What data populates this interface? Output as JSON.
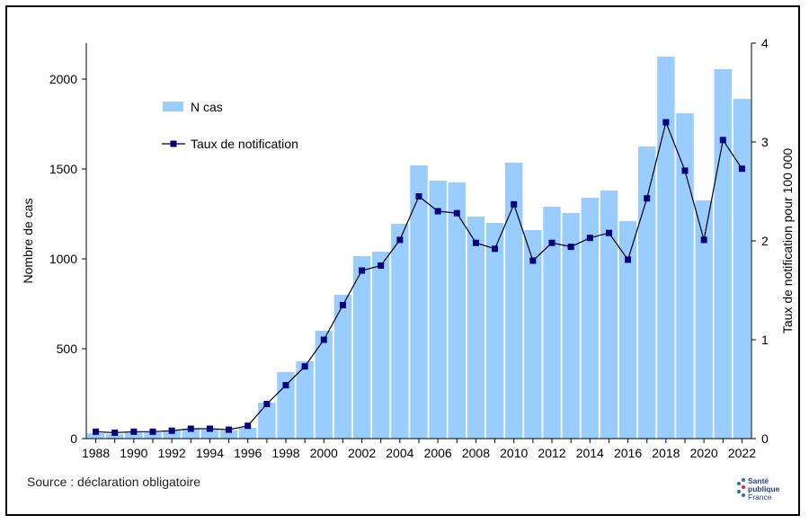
{
  "chart_data": {
    "type": "bar",
    "categories": [
      1988,
      1989,
      1990,
      1991,
      1992,
      1993,
      1994,
      1995,
      1996,
      1997,
      1998,
      1999,
      2000,
      2001,
      2002,
      2003,
      2004,
      2005,
      2006,
      2007,
      2008,
      2009,
      2010,
      2011,
      2012,
      2013,
      2014,
      2015,
      2016,
      2017,
      2018,
      2019,
      2020,
      2021,
      2022
    ],
    "x_tick_labels": [
      "1988",
      "1990",
      "1992",
      "1994",
      "1996",
      "1998",
      "2000",
      "2002",
      "2004",
      "2006",
      "2008",
      "2010",
      "2012",
      "2014",
      "2016",
      "2018",
      "2020",
      "2022"
    ],
    "series": [
      {
        "name": "N cas",
        "type": "bar",
        "axis": "left",
        "color": "#99ccff",
        "values": [
          30,
          25,
          35,
          35,
          45,
          55,
          50,
          45,
          60,
          200,
          370,
          430,
          600,
          800,
          1015,
          1040,
          1195,
          1520,
          1435,
          1425,
          1235,
          1200,
          1535,
          1160,
          1290,
          1255,
          1340,
          1380,
          1210,
          1625,
          2125,
          1810,
          1325,
          2055,
          1890
        ]
      },
      {
        "name": "Taux de notification",
        "type": "line",
        "axis": "right",
        "color": "#000080",
        "values": [
          0.07,
          0.06,
          0.07,
          0.07,
          0.08,
          0.1,
          0.1,
          0.09,
          0.13,
          0.35,
          0.54,
          0.73,
          1.0,
          1.35,
          1.7,
          1.75,
          2.01,
          2.45,
          2.3,
          2.28,
          1.98,
          1.92,
          2.37,
          1.8,
          1.98,
          1.94,
          2.03,
          2.08,
          1.81,
          2.43,
          3.2,
          2.71,
          2.01,
          3.02,
          2.73
        ]
      }
    ],
    "y_left": {
      "label": "Nombre de cas",
      "lim": [
        0,
        2200
      ],
      "ticks": [
        0,
        500,
        1000,
        1500,
        2000
      ]
    },
    "y_right": {
      "label": "Taux de notification  pour 100 000",
      "lim": [
        0,
        4
      ],
      "ticks": [
        0,
        1,
        2,
        3,
        4
      ]
    },
    "legend": {
      "position": "top-left",
      "entries": [
        "N cas",
        "Taux de notification"
      ]
    },
    "grid": false
  },
  "footer": {
    "source": "Source : déclaration obligatoire",
    "logo_line1": "Santé",
    "logo_line2": "publique",
    "logo_line3": "France"
  }
}
